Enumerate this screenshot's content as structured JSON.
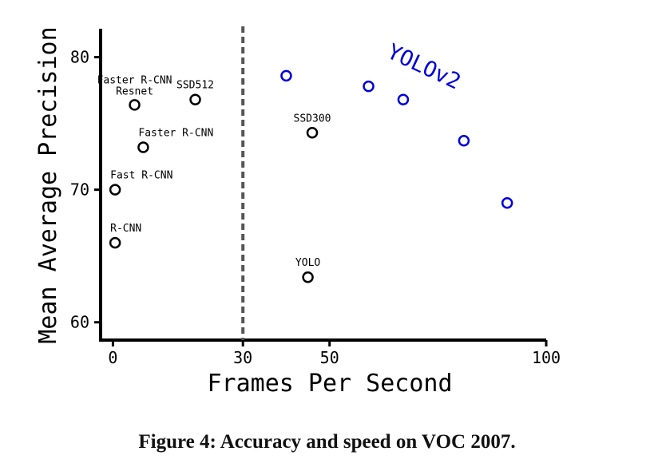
{
  "figure_caption": {
    "label": "Figure 4:",
    "text": "Accuracy and speed on VOC 2007."
  },
  "chart_data": {
    "type": "scatter",
    "xlabel": "Frames Per Second",
    "ylabel": "Mean Average Precision",
    "x_ticks": [
      0,
      30,
      50,
      100
    ],
    "y_ticks": [
      60,
      70,
      80
    ],
    "xlim": [
      -1,
      100
    ],
    "ylim": [
      59.5,
      81
    ],
    "realtime_threshold_x": 30,
    "grid": false,
    "colors": {
      "baseline": "#000000",
      "yolov2": "#0000dd",
      "threshold": "#555555"
    },
    "series": [
      {
        "name": "YOLOv2",
        "color": "#0000dd",
        "points": [
          {
            "x": 40,
            "y": 78.6
          },
          {
            "x": 59,
            "y": 77.8
          },
          {
            "x": 67,
            "y": 76.8
          },
          {
            "x": 81,
            "y": 73.7
          },
          {
            "x": 91,
            "y": 69.0
          }
        ]
      }
    ],
    "points": [
      {
        "x": 0.5,
        "y": 66.0,
        "label": "R-CNN"
      },
      {
        "x": 0.5,
        "y": 70.0,
        "label": "Fast R-CNN"
      },
      {
        "x": 7,
        "y": 73.2,
        "label": "Faster R-CNN"
      },
      {
        "x": 5,
        "y": 76.4,
        "label": "Faster R-CNN Resnet"
      },
      {
        "x": 19,
        "y": 76.8,
        "label": "SSD512"
      },
      {
        "x": 46,
        "y": 74.3,
        "label": "SSD300"
      },
      {
        "x": 45,
        "y": 63.4,
        "label": "YOLO"
      }
    ]
  }
}
